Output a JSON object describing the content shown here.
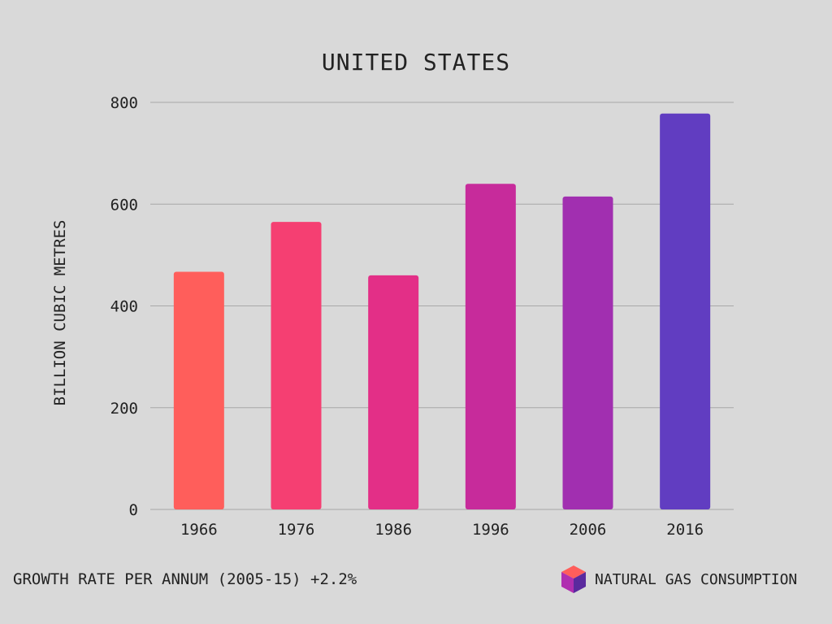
{
  "chart_data": {
    "type": "bar",
    "title": "UNITED STATES",
    "xlabel": "",
    "ylabel": "BILLION CUBIC METRES",
    "categories": [
      "1966",
      "1976",
      "1986",
      "1996",
      "2006",
      "2016"
    ],
    "values": [
      467,
      565,
      460,
      640,
      615,
      778
    ],
    "ylim": [
      0,
      800
    ],
    "yticks": [
      0,
      200,
      400,
      600,
      800
    ],
    "grid": true,
    "bar_colors": [
      "#ff5e5b",
      "#f53f72",
      "#e32f87",
      "#c72b9b",
      "#a12fb0",
      "#613dc1"
    ],
    "legend": {
      "label": "NATURAL GAS CONSUMPTION",
      "position": "bottom-right",
      "icon": "cube-icon"
    }
  },
  "footer": {
    "note": "GROWTH RATE PER ANNUM (2005-15) +2.2%"
  },
  "colors": {
    "background": "#d9d9d9",
    "gridline": "#a8a8a8",
    "text": "#222222"
  }
}
